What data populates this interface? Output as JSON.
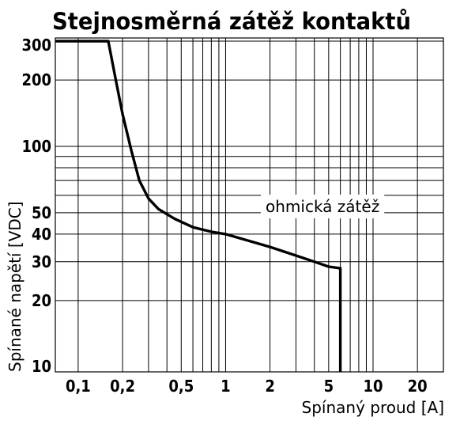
{
  "chart_data": {
    "type": "line",
    "title": "Stejnosměrná zátěž kontaktů",
    "xlabel": "Spínaný proud [A]",
    "ylabel": "Spínané napětí [VDC]",
    "xscale": "log",
    "yscale": "log",
    "xlim": [
      0.07,
      30
    ],
    "ylim": [
      9.5,
      310
    ],
    "grid": true,
    "x_ticks": [
      {
        "value": 0.1,
        "label": "0,1"
      },
      {
        "value": 0.2,
        "label": "0,2"
      },
      {
        "value": 0.5,
        "label": "0,5"
      },
      {
        "value": 1,
        "label": "1"
      },
      {
        "value": 2,
        "label": "2"
      },
      {
        "value": 5,
        "label": "5"
      },
      {
        "value": 10,
        "label": "10"
      },
      {
        "value": 20,
        "label": "20"
      }
    ],
    "y_ticks": [
      {
        "value": 10,
        "label": "10"
      },
      {
        "value": 20,
        "label": "20"
      },
      {
        "value": 30,
        "label": "30"
      },
      {
        "value": 40,
        "label": "40"
      },
      {
        "value": 50,
        "label": "50"
      },
      {
        "value": 100,
        "label": "100"
      },
      {
        "value": 200,
        "label": "200"
      },
      {
        "value": 300,
        "label": "300"
      }
    ],
    "annotation": "ohmická zátěž",
    "series": [
      {
        "x": [
          0.07,
          0.16,
          0.18,
          0.2,
          0.23,
          0.26,
          0.3,
          0.35,
          0.45,
          0.6,
          0.8,
          1,
          1.5,
          2,
          3,
          4,
          5,
          6,
          6,
          6
        ],
        "y": [
          300,
          300,
          200,
          140,
          95,
          70,
          58,
          52,
          47,
          43,
          41,
          40,
          37,
          35,
          32,
          30,
          28.5,
          28,
          15,
          9.5
        ]
      }
    ]
  }
}
